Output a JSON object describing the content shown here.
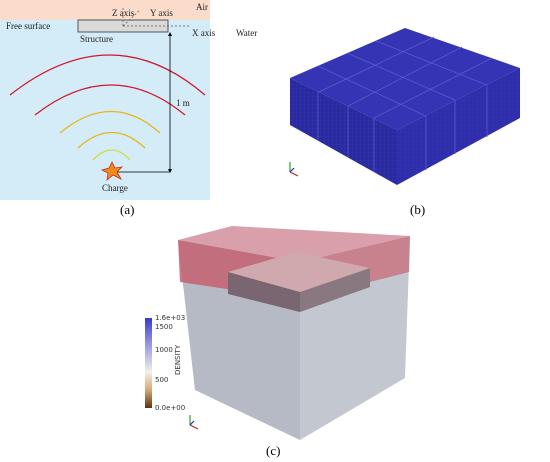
{
  "panel_a": {
    "air": "Air",
    "free_surface": "Free surface",
    "z_axis": "Z axis",
    "y_axis": "Y axis",
    "x_axis": "X axis",
    "water": "Water",
    "structure": "Structure",
    "distance": "1 m",
    "charge": "Charge",
    "label": "(a)"
  },
  "panel_b": {
    "label": "(b)"
  },
  "panel_c": {
    "colorbar": {
      "title": "DENSITY",
      "labels": [
        "1.6e+03",
        "1500",
        "1000",
        "500",
        "0.0e+00"
      ]
    },
    "label": "(c)"
  }
}
